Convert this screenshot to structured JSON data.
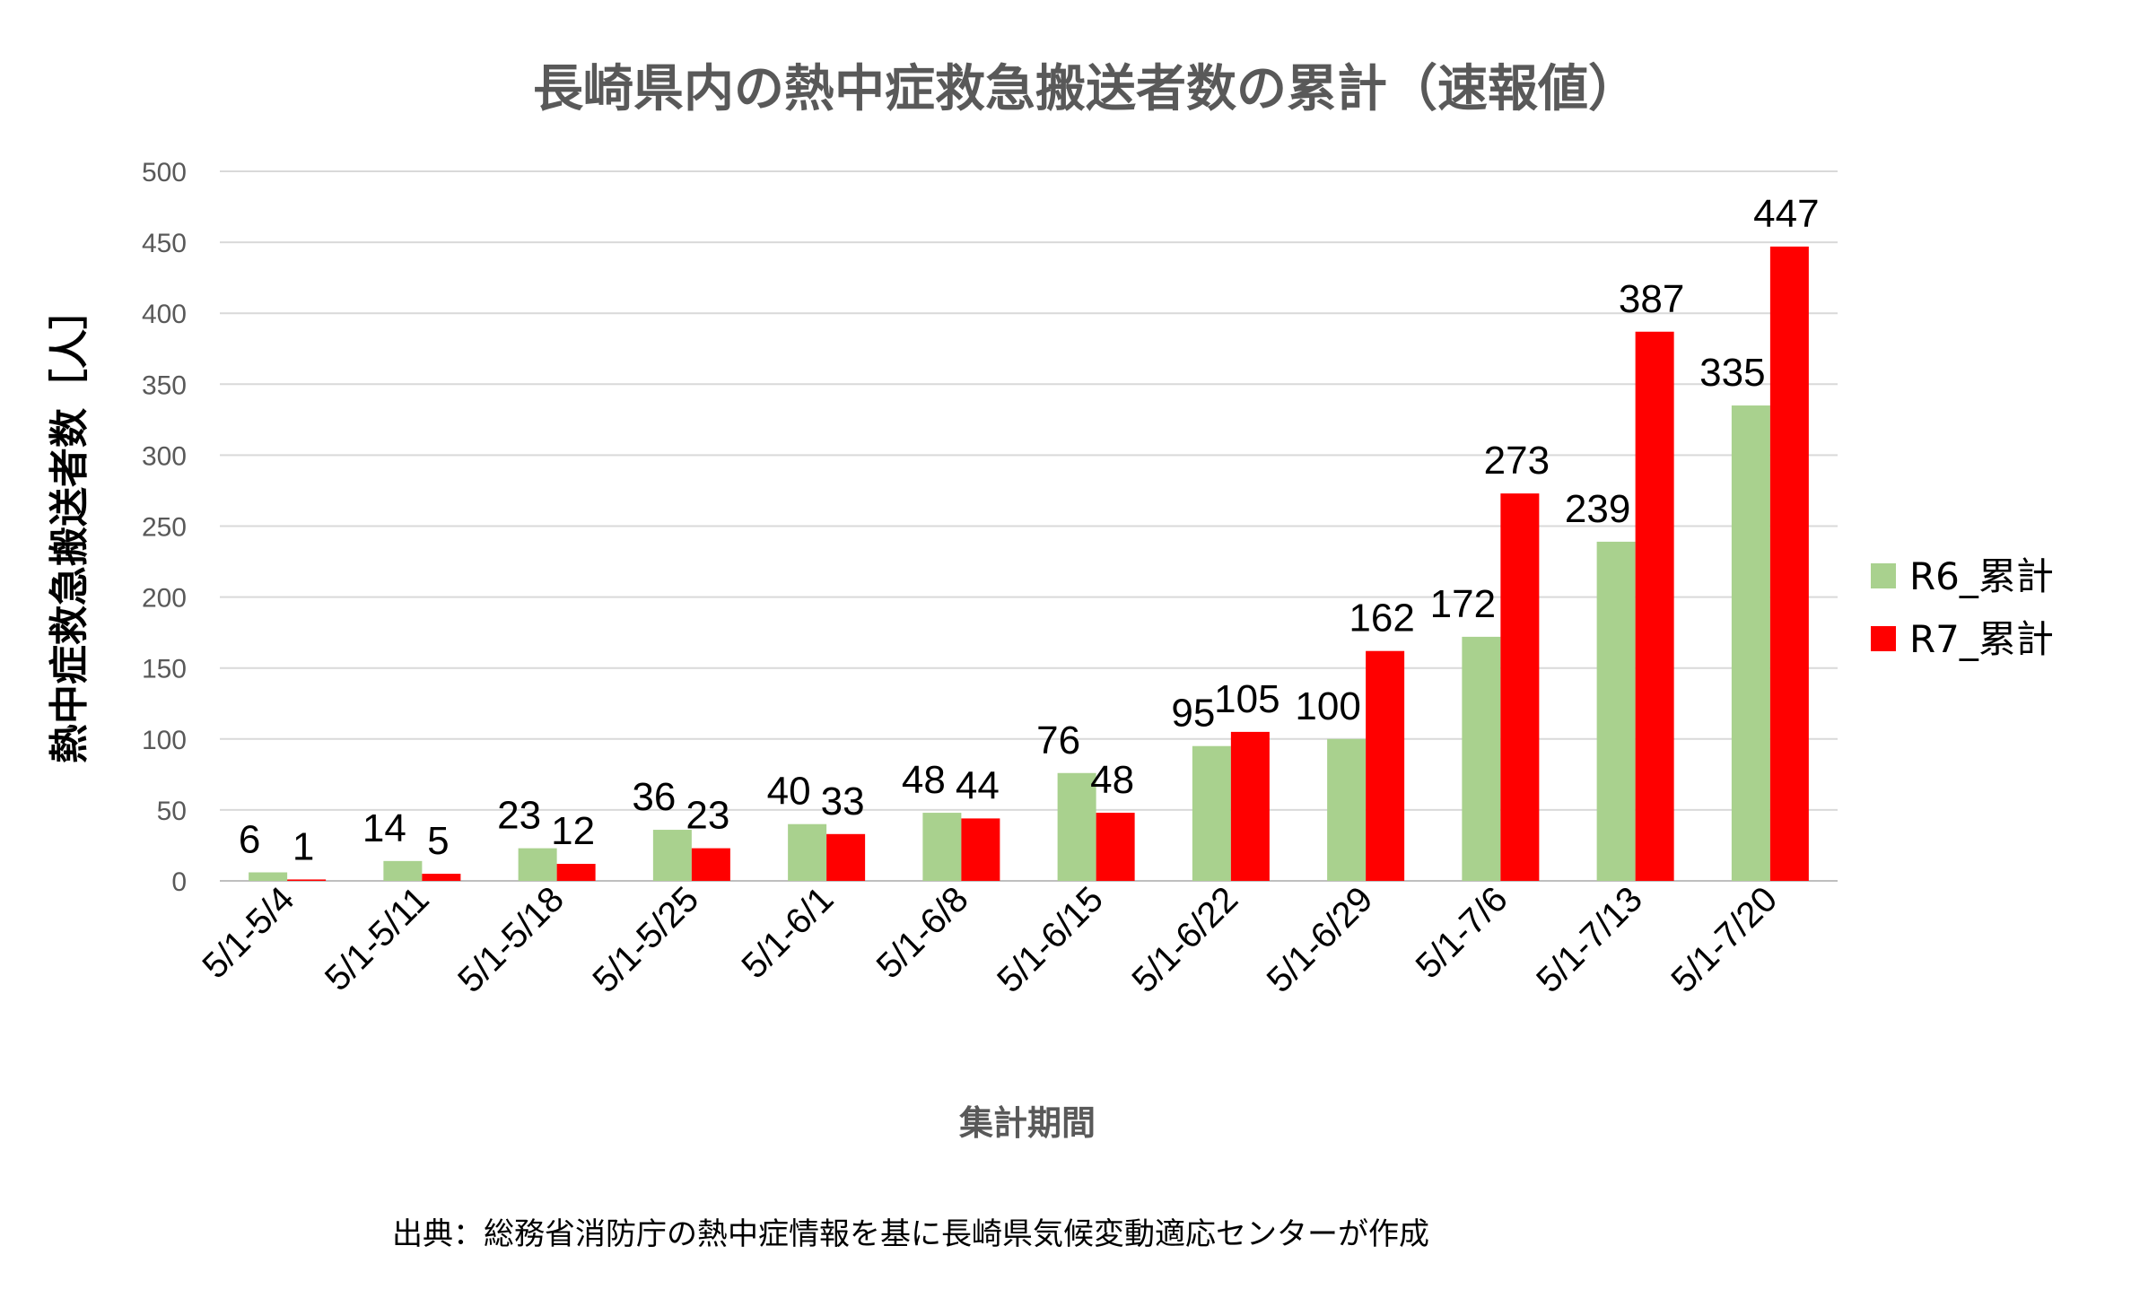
{
  "chart_data": {
    "type": "bar",
    "title": "長崎県内の熱中症救急搬送者数の累計（速報値）",
    "ylabel": "熱中症救急搬送者数［人］",
    "xlabel": "集計期間",
    "ylim": [
      0,
      500
    ],
    "yticks": [
      0,
      50,
      100,
      150,
      200,
      250,
      300,
      350,
      400,
      450,
      500
    ],
    "grid": true,
    "legend_position": "right",
    "categories": [
      "5/1-5/4",
      "5/1-5/11",
      "5/1-5/18",
      "5/1-5/25",
      "5/1-6/1",
      "5/1-6/8",
      "5/1-6/15",
      "5/1-6/22",
      "5/1-6/29",
      "5/1-7/6",
      "5/1-7/13",
      "5/1-7/20"
    ],
    "series": [
      {
        "name": "R6_累計",
        "color": "#A9D18E",
        "values": [
          6,
          14,
          23,
          36,
          40,
          48,
          76,
          95,
          100,
          172,
          239,
          335
        ]
      },
      {
        "name": "R7_累計",
        "color": "#FF0000",
        "values": [
          1,
          5,
          12,
          23,
          33,
          44,
          48,
          105,
          162,
          273,
          387,
          447
        ]
      }
    ]
  },
  "source_note": "出典：総務省消防庁の熱中症情報を基に長崎県気候変動適応センターが作成"
}
